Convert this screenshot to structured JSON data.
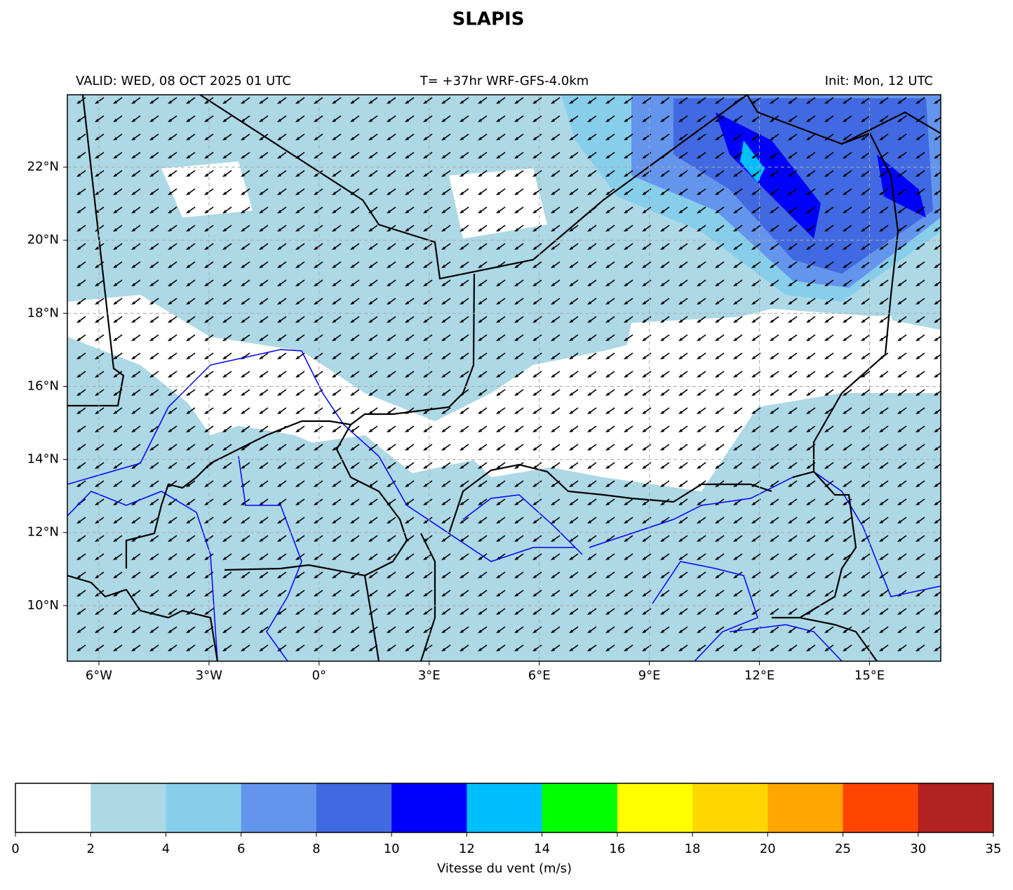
{
  "chart_data": {
    "type": "map",
    "title": "SLAPIS",
    "subtitle_left": "VALID: WED, 08 OCT 2025 01 UTC",
    "subtitle_center": "T= +37hr WRF-GFS-4.0km",
    "subtitle_right": "Init: Mon, 12 UTC",
    "xlim": [
      -6.86,
      16.94
    ],
    "ylim": [
      8.48,
      23.98
    ],
    "grid": true,
    "xticks": [
      {
        "value": -6,
        "label": "6°W"
      },
      {
        "value": -3,
        "label": "3°W"
      },
      {
        "value": 0,
        "label": "0°"
      },
      {
        "value": 3,
        "label": "3°E"
      },
      {
        "value": 6,
        "label": "6°E"
      },
      {
        "value": 9,
        "label": "9°E"
      },
      {
        "value": 12,
        "label": "12°E"
      },
      {
        "value": 15,
        "label": "15°E"
      }
    ],
    "yticks": [
      {
        "value": 10,
        "label": "10°N"
      },
      {
        "value": 12,
        "label": "12°N"
      },
      {
        "value": 14,
        "label": "14°N"
      },
      {
        "value": 16,
        "label": "16°N"
      },
      {
        "value": 18,
        "label": "18°N"
      },
      {
        "value": 20,
        "label": "20°N"
      },
      {
        "value": 22,
        "label": "22°N"
      }
    ],
    "colorbar": {
      "label": "Vitesse du vent (m/s)",
      "levels": [
        0,
        2,
        4,
        6,
        8,
        10,
        12,
        14,
        16,
        18,
        20,
        25,
        30,
        35
      ],
      "colors": [
        "#ffffff",
        "#add8e6",
        "#87ceeb",
        "#6495ed",
        "#4169e1",
        "#0000ff",
        "#00bfff",
        "#00ff00",
        "#ffff00",
        "#ffd700",
        "#ffa500",
        "#ff4500",
        "#b22222"
      ]
    }
  }
}
